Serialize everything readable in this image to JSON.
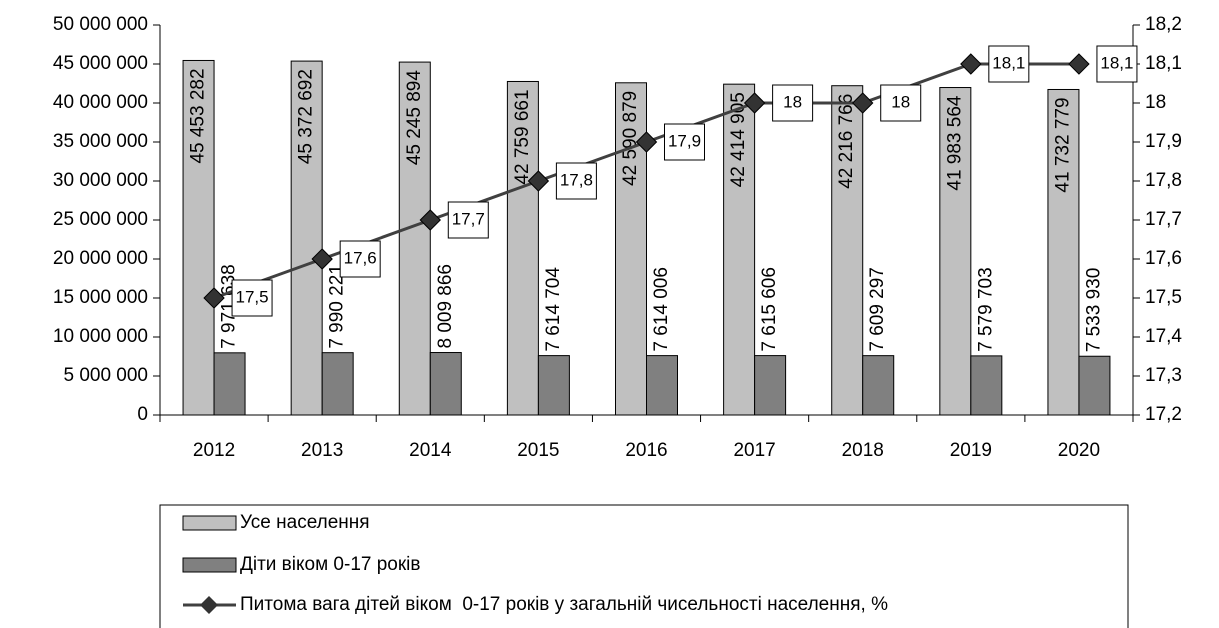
{
  "chart_data": {
    "type": "bar+line",
    "categories": [
      "2012",
      "2013",
      "2014",
      "2015",
      "2016",
      "2017",
      "2018",
      "2019",
      "2020"
    ],
    "series": [
      {
        "name": "Усе населення",
        "color": "#c0c0c0",
        "values": [
          45453282,
          45372692,
          45245894,
          42759661,
          42590879,
          42414905,
          42216766,
          41983564,
          41732779
        ],
        "value_labels": [
          "45 453 282",
          "45 372 692",
          "45 245 894",
          "42 759 661",
          "42 590 879",
          "42 414 905",
          "42 216 766",
          "41 983 564",
          "41 732 779"
        ]
      },
      {
        "name": "Діти віком 0-17 років",
        "color": "#808080",
        "values": [
          7971638,
          7990221,
          8009866,
          7614704,
          7614006,
          7615606,
          7609297,
          7579703,
          7533930
        ],
        "value_labels": [
          "7 971 638",
          "7 990 221",
          "8 009 866",
          "7 614 704",
          "7 614 006",
          "7 615 606",
          "7 609 297",
          "7 579 703",
          "7 533 930"
        ]
      },
      {
        "name": "Питома вага дітей віком  0-17 років у загальній чисельності населення, %",
        "color": "#404040",
        "axis": "y2",
        "values": [
          17.5,
          17.6,
          17.7,
          17.8,
          17.9,
          18,
          18,
          18.1,
          18.1
        ],
        "value_labels": [
          "17,5",
          "17,6",
          "17,7",
          "17,8",
          "17,9",
          "18",
          "18",
          "18,1",
          "18,1"
        ]
      }
    ],
    "ylim": [
      0,
      50000000
    ],
    "yticks": [
      0,
      {
        "value": 5000000,
        "label": "5 000 000"
      },
      {
        "value": 10000000,
        "label": "10 000 000"
      },
      {
        "value": 15000000,
        "label": "15 000 000"
      },
      {
        "value": 20000000,
        "label": "20 000 000"
      },
      {
        "value": 25000000,
        "label": "25 000 000"
      },
      {
        "value": 30000000,
        "label": "30 000 000"
      },
      {
        "value": 35000000,
        "label": "35 000 000"
      },
      {
        "value": 40000000,
        "label": "40 000 000"
      },
      {
        "value": 45000000,
        "label": "45 000 000"
      },
      {
        "value": 50000000,
        "label": "50 000 000"
      }
    ],
    "y2lim": [
      17.2,
      18.2
    ],
    "y2ticks": [
      {
        "value": 17.2,
        "label": "17,2"
      },
      {
        "value": 17.3,
        "label": "17,3"
      },
      {
        "value": 17.4,
        "label": "17,4"
      },
      {
        "value": 17.5,
        "label": "17,5"
      },
      {
        "value": 17.6,
        "label": "17,6"
      },
      {
        "value": 17.7,
        "label": "17,7"
      },
      {
        "value": 17.8,
        "label": "17,8"
      },
      {
        "value": 17.9,
        "label": "17,9"
      },
      18,
      {
        "value": 18.1,
        "label": "18,1"
      },
      {
        "value": 18.2,
        "label": "18,2"
      }
    ],
    "legend": "bottom"
  }
}
